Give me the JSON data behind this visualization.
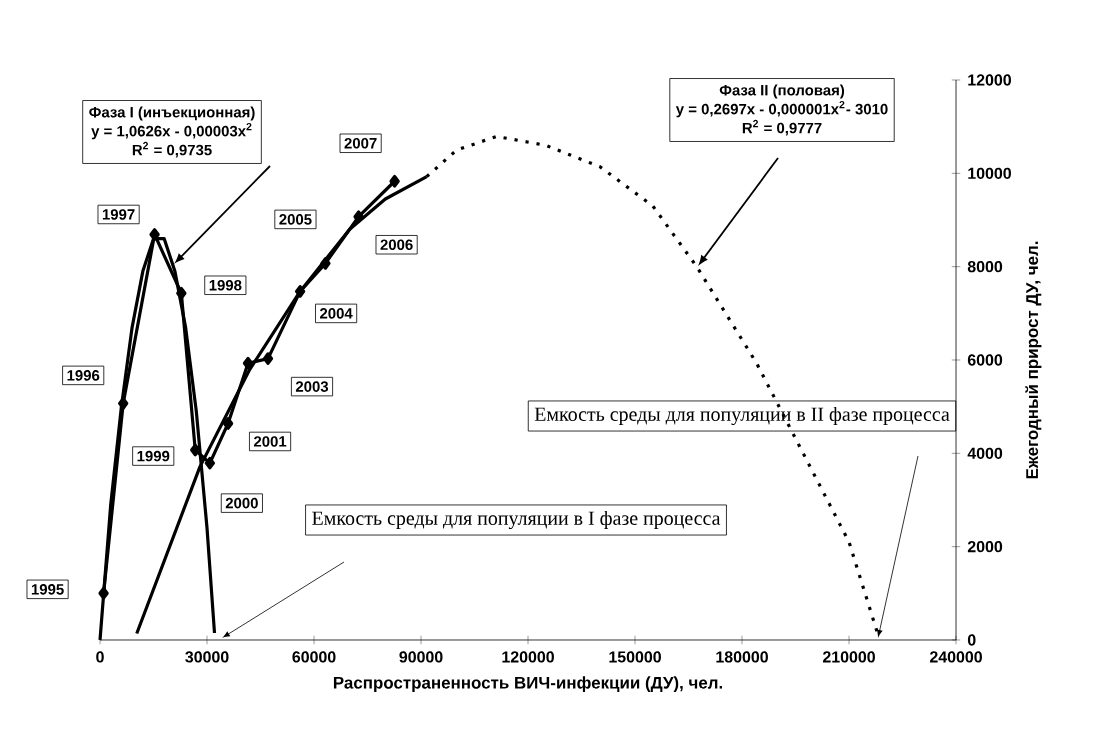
{
  "chart_data": {
    "type": "line",
    "xlabel": "Распространенность ВИЧ-инфекции (ДУ), чел.",
    "ylabel": "Ежегодный прирост ДУ, чел.",
    "xlim": [
      0,
      240000
    ],
    "xticks": [
      0,
      30000,
      60000,
      90000,
      120000,
      150000,
      180000,
      210000,
      240000
    ],
    "ylim": [
      0,
      12000
    ],
    "yticks": [
      0,
      2000,
      4000,
      6000,
      8000,
      10000,
      12000
    ],
    "grid": false,
    "series": [
      {
        "color": "#000000",
        "marker": "diamond",
        "line_style": "solid",
        "x": [
          1000,
          6500,
          15300,
          22800,
          26700,
          30800,
          35900,
          41500,
          47100,
          56100,
          63200,
          72500,
          82600
        ],
        "values": [
          1000,
          5070,
          8690,
          7430,
          4070,
          3790,
          4640,
          5930,
          6030,
          7470,
          8070,
          9070,
          9830
        ]
      },
      {
        "color": "#000000",
        "marker": "none",
        "line_style": "solid",
        "x": [
          0,
          3000,
          6000,
          9000,
          12000,
          15000,
          18000,
          21000,
          24000,
          27000,
          30000,
          32100
        ],
        "values": [
          0,
          2900,
          5000,
          6700,
          7900,
          8600,
          8600,
          7900,
          6700,
          4900,
          2400,
          150
        ]
      },
      {
        "color": "#000000",
        "marker": "none",
        "line_style": "solid",
        "x": [
          10300,
          28000,
          42000,
          56100,
          70000,
          80000,
          91600
        ],
        "values": [
          140,
          3710,
          5800,
          7470,
          8800,
          9450,
          9930
        ]
      },
      {
        "color": "#000000",
        "marker": "none",
        "line_style": "dotted",
        "x": [
          91600,
          100000,
          111200,
          125000,
          140200,
          155000,
          167300,
          184100,
          198100,
          210000,
          218300
        ],
        "values": [
          9930,
          10500,
          10790,
          10600,
          10140,
          9300,
          8000,
          5930,
          3860,
          2100,
          70
        ]
      }
    ],
    "annotations": [
      {
        "text": "1995",
        "x": 1000,
        "y": 1000
      },
      {
        "text": "1996",
        "x": 6500,
        "y": 5070
      },
      {
        "text": "1997",
        "x": 15300,
        "y": 8690
      },
      {
        "text": "1998",
        "x": 22800,
        "y": 7430
      },
      {
        "text": "1999",
        "x": 26700,
        "y": 4070
      },
      {
        "text": "2000",
        "x": 30800,
        "y": 3790
      },
      {
        "text": "2001",
        "x": 35900,
        "y": 4640
      },
      {
        "text": "2003",
        "x": 47100,
        "y": 6030
      },
      {
        "text": "2004",
        "x": 56100,
        "y": 7470
      },
      {
        "text": "2005",
        "x": 63200,
        "y": 8070
      },
      {
        "text": "2006",
        "x": 72500,
        "y": 9070
      },
      {
        "text": "2007",
        "x": 82600,
        "y": 9830
      },
      "Фаза I (инъекционная)",
      "y = 1,0626x - 0,00003x$^{2}$",
      "R$^{2}$ = 0,9735",
      "Фаза II (половая)",
      "y = 0,2697x - 0,000001x$^{2}$- 3010",
      "R$^{2}$ = 0,9777",
      "Емкость среды для популяции в I фазе процесса",
      "Емкость среды для популяции в II фазе процесса"
    ]
  }
}
